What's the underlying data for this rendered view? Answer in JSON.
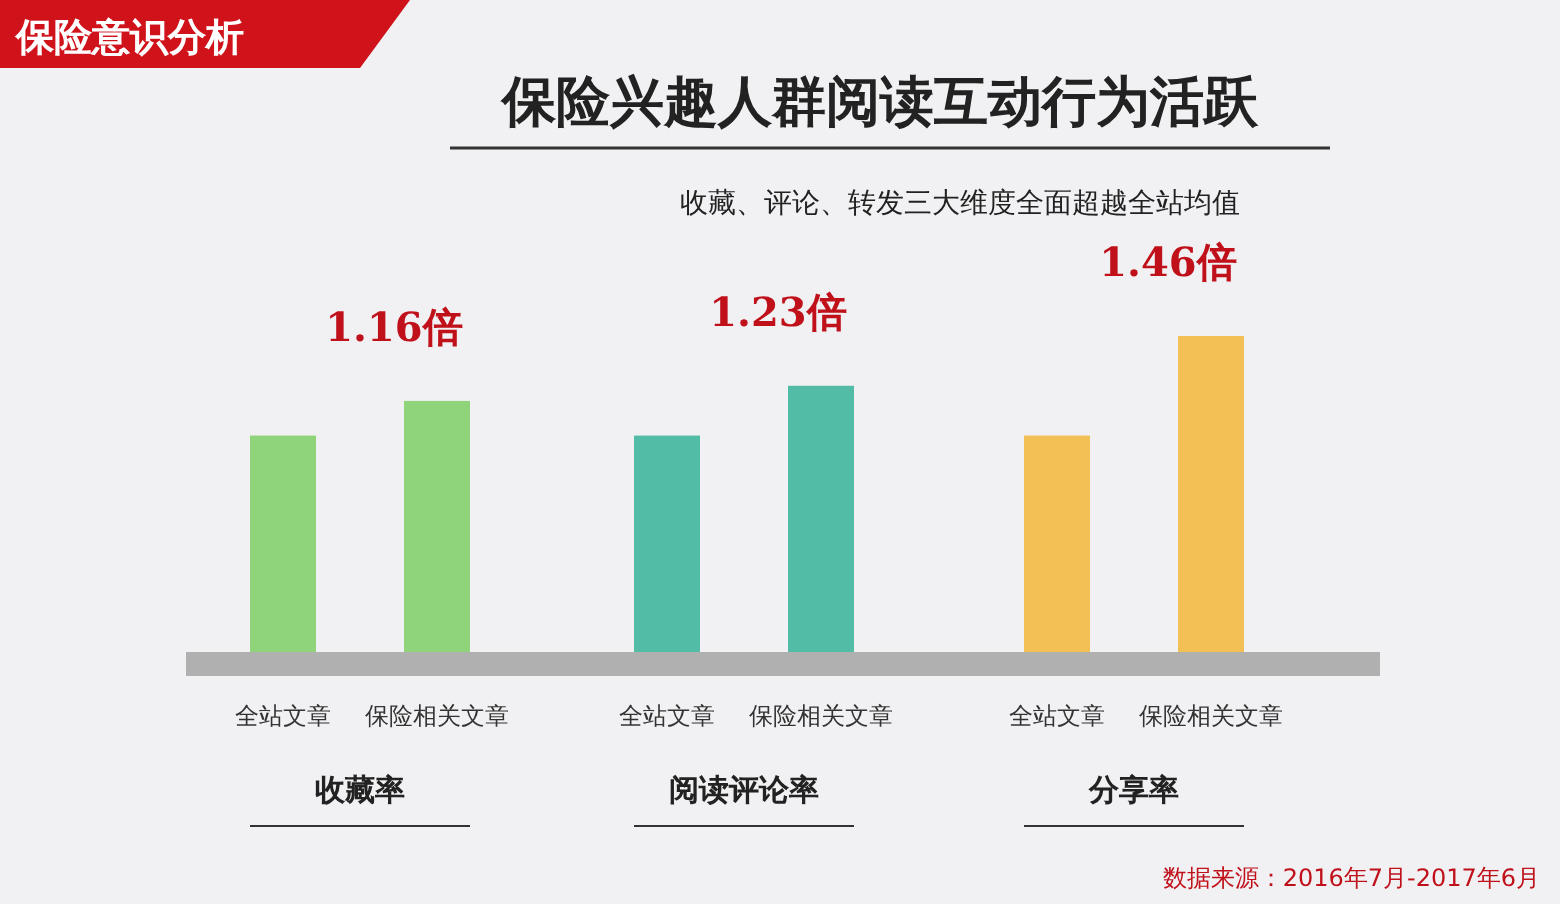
{
  "chart_data": {
    "type": "bar",
    "title": "保险兴趣人群阅读互动行为活跃",
    "subtitle": "收藏、评论、转发三大维度全面超越全站均值",
    "categories": [
      "全站文章",
      "保险相关文章",
      "全站文章",
      "保险相关文章",
      "全站文章",
      "保险相关文章"
    ],
    "values": [
      1,
      1.16,
      1,
      1.23,
      1,
      1.46
    ],
    "colors": [
      "#8fd47a",
      "#8fd47a",
      "#52bca6",
      "#52bca6",
      "#f2c055",
      "#f2c055"
    ],
    "value_labels": [
      null,
      "1.16倍",
      null,
      "1.23倍",
      null,
      "1.46倍"
    ],
    "annotations": [
      "收藏率",
      "阅读评论率",
      "分享率",
      "保险意识分析",
      "数据来源：2016年7月-2017年6月"
    ]
  }
}
